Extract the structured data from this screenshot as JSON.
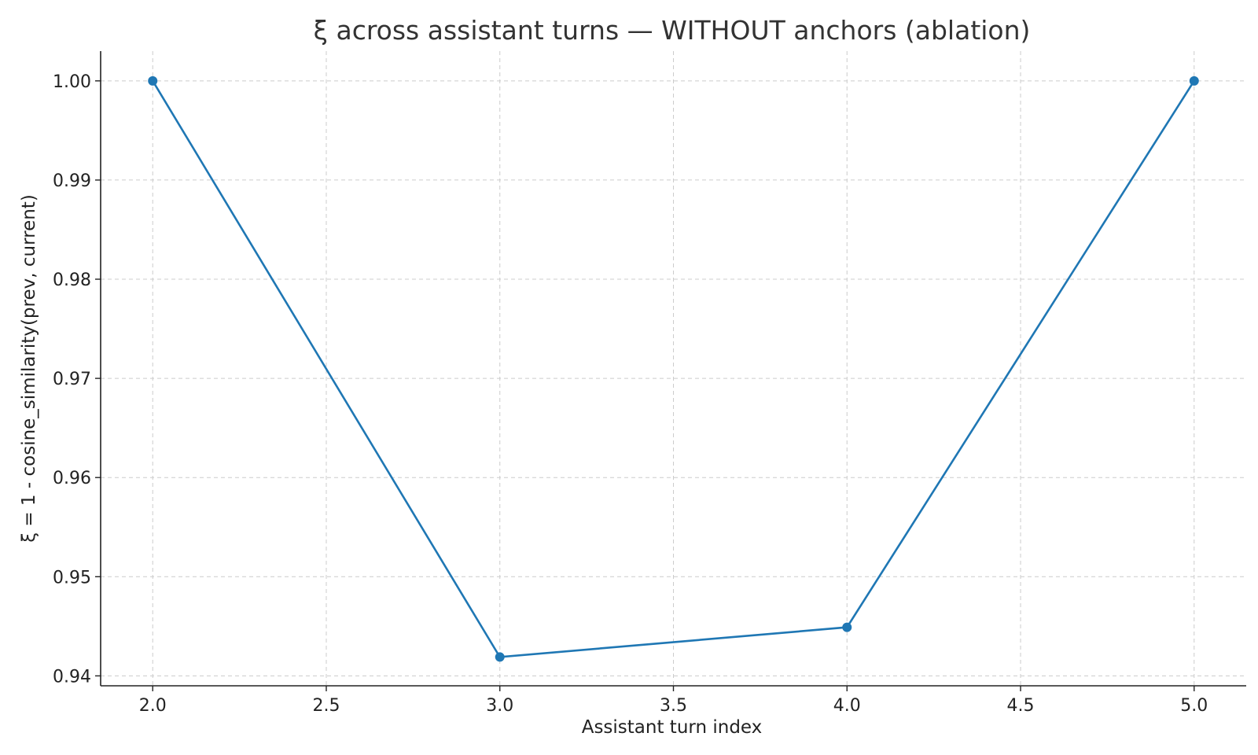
{
  "chart_data": {
    "type": "line",
    "title": "ξ across assistant turns — WITHOUT anchors (ablation)",
    "xlabel": "Assistant turn index",
    "ylabel": "ξ = 1 - cosine_similarity(prev, current)",
    "x": [
      2,
      3,
      4,
      5
    ],
    "series": [
      {
        "values": [
          1.0,
          0.9419,
          0.9449,
          1.0
        ],
        "color": "#1f77b4"
      }
    ],
    "xlim": [
      1.85,
      5.15
    ],
    "ylim": [
      0.939,
      1.003
    ],
    "xticks": [
      2.0,
      2.5,
      3.0,
      3.5,
      4.0,
      4.5,
      5.0
    ],
    "xtick_labels": [
      "2.0",
      "2.5",
      "3.0",
      "3.5",
      "4.0",
      "4.5",
      "5.0"
    ],
    "yticks": [
      0.94,
      0.95,
      0.96,
      0.97,
      0.98,
      0.99,
      1.0
    ],
    "ytick_labels": [
      "0.94",
      "0.95",
      "0.96",
      "0.97",
      "0.98",
      "0.99",
      "1.00"
    ],
    "grid": true,
    "markers": true
  }
}
